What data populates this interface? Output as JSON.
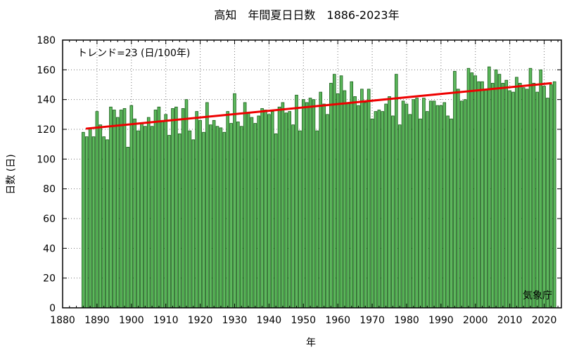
{
  "chart_data": {
    "type": "bar",
    "title": "高知　年間夏日日数　1886-2023年",
    "xlabel": "年",
    "ylabel": "日数 (日)",
    "xlim": [
      1880,
      2025
    ],
    "ylim": [
      0,
      180
    ],
    "xticks": [
      1880,
      1890,
      1900,
      1910,
      1920,
      1930,
      1940,
      1950,
      1960,
      1970,
      1980,
      1990,
      2000,
      2010,
      2020
    ],
    "yticks": [
      0,
      20,
      40,
      60,
      80,
      100,
      120,
      140,
      160,
      180
    ],
    "grid": true,
    "bar_color": "#5cb85c",
    "bar_edge_color": "#1a5e1a",
    "trend_color": "#ee0000",
    "annotation": "トレンド=23 (日/100年)",
    "source": "気象庁",
    "start_year": 1886,
    "values": [
      118,
      115,
      121,
      115,
      132,
      123,
      115,
      113,
      135,
      133,
      128,
      133,
      134,
      108,
      136,
      127,
      119,
      124,
      122,
      128,
      122,
      133,
      135,
      126,
      130,
      116,
      134,
      135,
      117,
      134,
      140,
      119,
      113,
      132,
      126,
      118,
      138,
      123,
      126,
      122,
      121,
      118,
      132,
      124,
      144,
      125,
      122,
      138,
      131,
      128,
      124,
      129,
      134,
      133,
      130,
      132,
      117,
      135,
      138,
      131,
      132,
      123,
      143,
      119,
      140,
      138,
      141,
      140,
      119,
      145,
      137,
      130,
      151,
      157,
      144,
      156,
      146,
      138,
      152,
      142,
      136,
      147,
      138,
      147,
      127,
      132,
      133,
      132,
      137,
      142,
      129,
      157,
      123,
      139,
      137,
      130,
      140,
      141,
      127,
      141,
      132,
      139,
      139,
      136,
      136,
      138,
      129,
      127,
      159,
      147,
      139,
      140,
      161,
      158,
      156,
      152,
      152,
      147,
      162,
      151,
      160,
      157,
      151,
      153,
      146,
      145,
      155,
      151,
      148,
      147,
      161,
      151,
      145,
      160,
      149,
      141,
      150,
      152
    ],
    "trend": {
      "start": [
        1887,
        120.5
      ],
      "end": [
        2022,
        151
      ]
    }
  }
}
